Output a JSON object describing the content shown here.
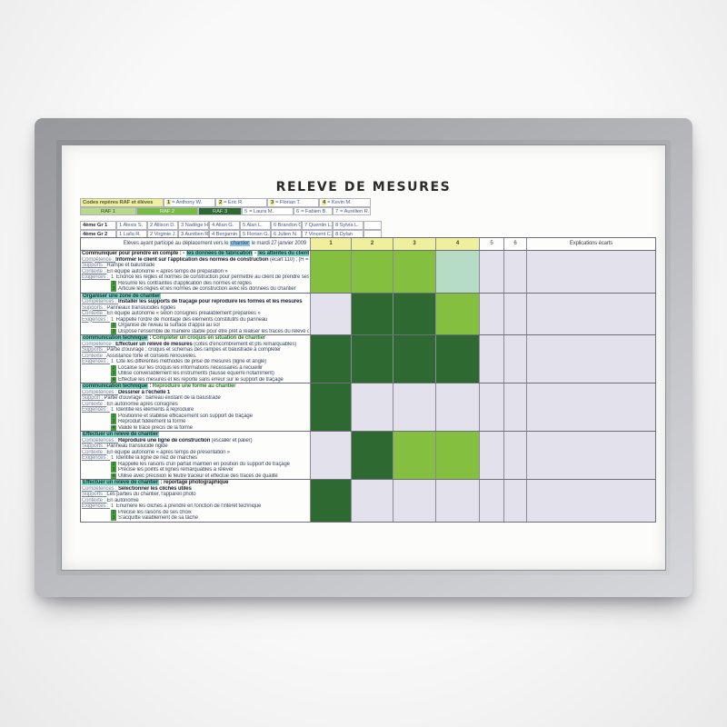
{
  "title": "RELEVE DE MESURES",
  "palette": {
    "cell_light": "#84bf3f",
    "cell_dark": "#2e6932",
    "cell_mint": "#b6dcc6",
    "header_yellow": "#f0ef9e",
    "hl_teal": "#7ed0c2",
    "hl_blue": "#8fc6e8",
    "grid_bg": "#e3e2ec"
  },
  "codes": {
    "header_label": "Codes repères RAF et élèves",
    "students_top": [
      {
        "n": "1",
        "name": "= Anthony W."
      },
      {
        "n": "2",
        "name": "= Eric R."
      },
      {
        "n": "3",
        "name": "= Florian T."
      },
      {
        "n": "4",
        "name": "= Kevin M."
      }
    ],
    "raf_levels": [
      "RAF 1",
      "RAF 2",
      "RAF 3"
    ],
    "students_bottom": [
      {
        "n": "5",
        "name": "= Laura M."
      },
      {
        "n": "6",
        "name": "= Fabien B."
      },
      {
        "n": "7",
        "name": "= Aurélien R."
      }
    ]
  },
  "groups": [
    {
      "label": "4ème Gr 1",
      "members": [
        "1 Alexis S.",
        "2 Allison D.",
        "3 Nadège H.",
        "4 Allan G.",
        "5 Alan L.",
        "6 Brandon C.",
        "7 Quentin L.",
        "8 Sylvia L."
      ]
    },
    {
      "label": "4ème Gr 2",
      "members": [
        "1 Laïla R.",
        "2 Virginie J.",
        "3 Aurélien R.",
        "4 Benjamin L.",
        "5 Florian G.",
        "6 Julien N.",
        "7 Vincent C.",
        "8 Dylan"
      ]
    }
  ],
  "main_header": {
    "left_pre": "Elèves ayant participé au déplacement vers le ",
    "left_hl": "chantier",
    "left_post": " le mardi 27 janvier 2009",
    "cols": [
      "1",
      "2",
      "3",
      "4",
      "5",
      "6"
    ],
    "explications": "Explications écarts"
  },
  "sections": [
    {
      "title": [
        {
          "t": "Communiquer pour prendre en compte : - ",
          "s": "plain"
        },
        {
          "t": "les données de fabrication",
          "s": "hl"
        },
        {
          "t": " - ",
          "s": "plain"
        },
        {
          "t": "les attentes du client",
          "s": "hl"
        },
        {
          "t": ".",
          "s": "plain"
        }
      ],
      "competence": {
        "label": "Compétence",
        "bold": "Informer le client sur l'application des normes de construction",
        "rest": " (écart 110) ; (H = 1m)"
      },
      "supports": {
        "label": "Supports",
        "text": "Rampe et balustrade"
      },
      "contexte": {
        "label": "Contexte",
        "text": "En équipe autonome « après temps de préparation »"
      },
      "exigences": {
        "label": "Exigences",
        "items": [
          {
            "n": "1",
            "text": "Enonce les règles et normes de construction pour permettre au client de prendre ses décisions"
          },
          {
            "n": "2",
            "text": "Résume les contraintes d'application des normes et règles"
          },
          {
            "n": "3",
            "text": "Articule les règles et les normes de construction avec les données du chantier"
          }
        ]
      },
      "cells": {
        "1": "light",
        "2": "light",
        "3": "light",
        "4": "mint"
      }
    },
    {
      "title": [
        {
          "t": "Organiser une zone de chantier",
          "s": "hl"
        }
      ],
      "competence": {
        "label": "Compétences",
        "bold": "Installer les supports de traçage pour reproduire les formes et les mesures",
        "rest": ""
      },
      "supports": {
        "label": "Supports",
        "text": "Panneaux translucides rigides"
      },
      "contexte": {
        "label": "Contexte",
        "text": "En équipe autonome « selon consignes préalablement préparées »"
      },
      "exigences": {
        "label": "Exigences",
        "items": [
          {
            "n": "1",
            "text": "Rappelle l'ordre de montage des éléments constitutifs du panneau"
          },
          {
            "n": "2",
            "text": "Organise de niveau la surface d'appui au sol"
          },
          {
            "n": "3",
            "text": "Dispose l'ensemble de manière stable pour être prêt à réaliser les tracés du relevé des formes"
          }
        ]
      },
      "cells": {
        "2": "dark",
        "3": "dark",
        "4": "light"
      }
    },
    {
      "title": [
        {
          "t": "communication technique",
          "s": "hl"
        },
        {
          "t": " : ",
          "s": "plain"
        },
        {
          "t": "Compléter un croquis en situation de chantier",
          "s": "green"
        }
      ],
      "competence": {
        "label": "Compétence",
        "bold": "Effectuer un relevé de mesures",
        "rest": " (cotes d'encombrement et pts remarquables)"
      },
      "supports": {
        "label": "Supports",
        "text": "Partie d'ouvrage ; croquis et schémas des rampes et balustrade à compléter"
      },
      "contexte": {
        "label": "Contexte",
        "text": "Assistance forte et conseils renouvelés."
      },
      "exigences": {
        "label": "Exigences",
        "items": [
          {
            "n": "1",
            "text": "Cite les différentes méthodes de prise de mesures (ligne et angle)"
          },
          {
            "n": "2",
            "text": "Localise sur les croquis les informations nécessaires à recueillir"
          },
          {
            "n": "3",
            "text": "Utilise convenablement les instruments (fausse équerre notamment)"
          },
          {
            "n": "4",
            "text": "Effectue les mesures et les reporte sans erreur sur le support de traçage"
          }
        ]
      },
      "cells": {
        "1": "dark",
        "2": "dark",
        "3": "dark",
        "4": "dark"
      }
    },
    {
      "title": [
        {
          "t": "communication technique",
          "s": "hl"
        },
        {
          "t": " : ",
          "s": "plain"
        },
        {
          "t": "Reproduire une forme au chantier",
          "s": "green"
        }
      ],
      "competence": {
        "label": "Compétences",
        "bold": "Dessiner à l'échelle 1",
        "rest": ""
      },
      "supports": {
        "label": "Support",
        "text": "Partie d'ouvrage : barreau existant de la balustrade"
      },
      "contexte": {
        "label": "Contexte",
        "text": "En autonomie après consignes"
      },
      "exigences": {
        "label": "Exigences",
        "items": [
          {
            "n": "1",
            "text": "Identifie les éléments à reproduire"
          },
          {
            "n": "2",
            "text": "Positionne et stabilise efficacement son support de traçage"
          },
          {
            "n": "3",
            "text": "Reproduit fidèlement la forme"
          },
          {
            "n": "4",
            "text": "Valide le tracé précis de la forme"
          }
        ]
      },
      "cells": {
        "1": "dark"
      }
    },
    {
      "title": [
        {
          "t": "Effectuer un relevé de chantier",
          "s": "hl"
        }
      ],
      "competence": {
        "label": "Compétences",
        "bold": "Reproduire une ligne de construction",
        "rest": " (escalier et palier)"
      },
      "supports": {
        "label": "Supports",
        "text": "Panneau translucide rigide"
      },
      "contexte": {
        "label": "Contexte",
        "text": "En équipe autonome « après temps de présentation »"
      },
      "exigences": {
        "label": "Exigences",
        "items": [
          {
            "n": "1",
            "text": "Identifie la ligne de nez de marches"
          },
          {
            "n": "2",
            "text": "Rappelle les raisons d'un parfait maintien en position du support de traçage"
          },
          {
            "n": "3",
            "text": "Précise les points et lignes remarquables à relever"
          },
          {
            "n": "4",
            "text": "Utilise avec précision le feutre traceur et effectue des tracés de qualité"
          }
        ]
      },
      "cells": {
        "2": "dark",
        "3": "light",
        "4": "light"
      }
    },
    {
      "title": [
        {
          "t": "Effectuer un relevé de chantier",
          "s": "hl"
        },
        {
          "t": " : reportage photographique",
          "s": "plain"
        }
      ],
      "competence": {
        "label": "Compétences",
        "bold": "Sélectionner les clichés utiles",
        "rest": ""
      },
      "supports": {
        "label": "Supports",
        "text": "Les parties du chantier, l'appareil photo"
      },
      "contexte": {
        "label": "Contexte",
        "text": "En autonomie"
      },
      "exigences": {
        "label": "Exigences",
        "items": [
          {
            "n": "1",
            "text": "Enumère les clichés à prendre en fonction de l'intérêt technique"
          },
          {
            "n": "2",
            "text": "Précise les raisons de ses choix"
          },
          {
            "n": "3",
            "text": "S'acquitte valablement de sa tâche"
          }
        ]
      },
      "cells": {
        "1": "dark"
      }
    }
  ]
}
